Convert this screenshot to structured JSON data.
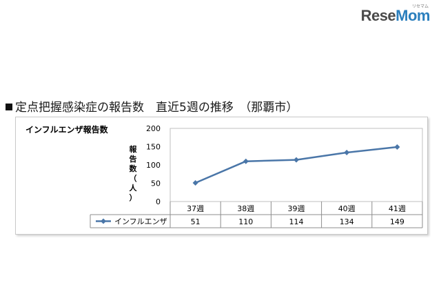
{
  "logo": {
    "text_main": "Rese",
    "text_accent": "Mom",
    "small_text": "リセマム"
  },
  "heading": "定点把握感染症の報告数　直近5週の推移　（那覇市）",
  "chart_data": {
    "type": "line",
    "title": "インフルエンザ報告数",
    "ylabel_chars": [
      "報",
      "告",
      "数",
      "（",
      "人",
      "）"
    ],
    "xlabel": "",
    "categories": [
      "37週",
      "38週",
      "39週",
      "40週",
      "41週"
    ],
    "series": [
      {
        "name": "インフルエンザ",
        "values": [
          51,
          110,
          114,
          134,
          149
        ]
      }
    ],
    "ylim": [
      0,
      200
    ],
    "yticks": [
      0,
      50,
      100,
      150,
      200
    ],
    "grid": false,
    "data_table": true,
    "line_color": "#4a76a8",
    "legend_placement": "data-table-left"
  }
}
